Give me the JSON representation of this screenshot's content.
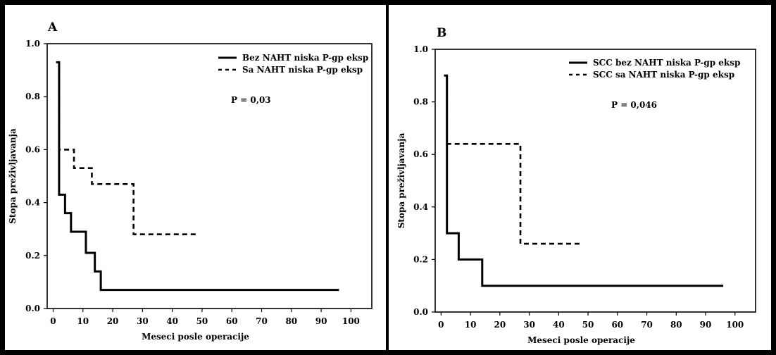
{
  "chart_data": [
    {
      "type": "line",
      "panel_label": "A",
      "xlabel": "Meseci posle operacije",
      "ylabel": "Stopa preživljavanja",
      "xlim": [
        -2,
        107
      ],
      "ylim": [
        0,
        1.0
      ],
      "xticks": [
        0,
        10,
        20,
        30,
        40,
        50,
        60,
        70,
        80,
        90,
        100
      ],
      "yticks": [
        0.0,
        0.2,
        0.4,
        0.6,
        0.8,
        1.0
      ],
      "ytick_labels": [
        "0.0",
        "0.2",
        "0.4",
        "0.6",
        "0.8",
        "1.0"
      ],
      "grid": false,
      "legend_position": "top-right",
      "annotation": "P = 0,03",
      "series": [
        {
          "name": "Bez NAHT niska P-gp eksp",
          "style": "solid",
          "steps": [
            [
              1,
              0.93
            ],
            [
              2,
              0.71
            ],
            [
              2,
              0.43
            ],
            [
              4,
              0.36
            ],
            [
              6,
              0.29
            ],
            [
              11,
              0.21
            ],
            [
              14,
              0.14
            ],
            [
              16,
              0.07
            ],
            [
              96,
              0.07
            ]
          ]
        },
        {
          "name": "Sa NAHT niska P-gp eksp",
          "style": "dashed",
          "steps": [
            [
              2,
              0.9
            ],
            [
              2,
              0.72
            ],
            [
              2,
              0.6
            ],
            [
              7,
              0.53
            ],
            [
              13,
              0.47
            ],
            [
              27,
              0.28
            ],
            [
              49,
              0.28
            ]
          ]
        }
      ]
    },
    {
      "type": "line",
      "panel_label": "B",
      "xlabel": "Meseci posle operacije",
      "ylabel": "Stopa preživljavanja",
      "xlim": [
        -2,
        107
      ],
      "ylim": [
        0,
        1.0
      ],
      "xticks": [
        0,
        10,
        20,
        30,
        40,
        50,
        60,
        70,
        80,
        90,
        100
      ],
      "yticks": [
        0.0,
        0.2,
        0.4,
        0.6,
        0.8,
        1.0
      ],
      "ytick_labels": [
        "0.0",
        "0.2",
        "0.4",
        "0.6",
        "0.8",
        "1.0"
      ],
      "grid": false,
      "legend_position": "top-right",
      "annotation": "P = 0,046",
      "series": [
        {
          "name": "SCC bez NAHT niska P-gp eksp",
          "style": "solid",
          "steps": [
            [
              1,
              0.9
            ],
            [
              2,
              0.7
            ],
            [
              2,
              0.3
            ],
            [
              6,
              0.2
            ],
            [
              14,
              0.1
            ],
            [
              96,
              0.1
            ]
          ]
        },
        {
          "name": "SCC sa NAHT niska P-gp eksp",
          "style": "dashed",
          "steps": [
            [
              2,
              0.9
            ],
            [
              2,
              0.64
            ],
            [
              27,
              0.26
            ],
            [
              48,
              0.26
            ]
          ]
        }
      ]
    }
  ]
}
